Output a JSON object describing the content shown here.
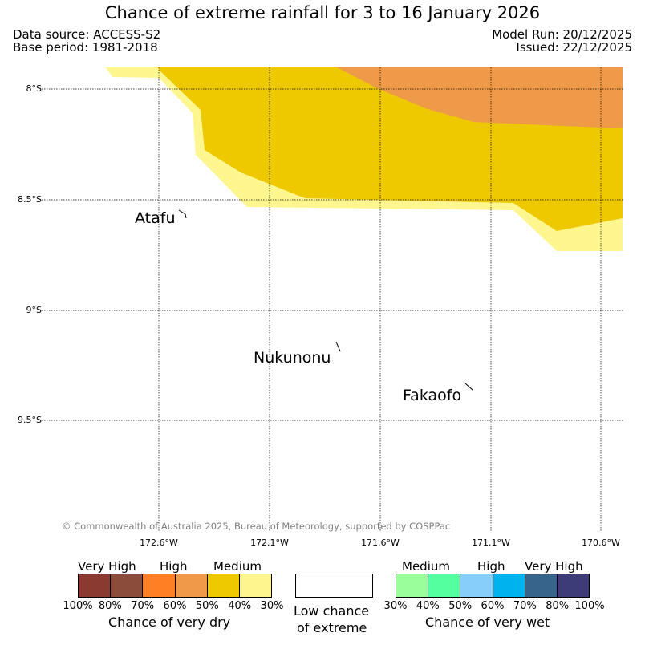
{
  "header": {
    "title": "Chance of extreme rainfall for 3 to 16 January 2026",
    "data_source": "Data source: ACCESS-S2",
    "base_period": "Base period: 1981-2018",
    "model_run": "Model Run: 20/12/2025",
    "issued": "Issued: 22/12/2025"
  },
  "map": {
    "lat_labels": [
      "8°S",
      "8.5°S",
      "9°S",
      "9.5°S"
    ],
    "lon_labels": [
      "172.6°W",
      "172.1°W",
      "171.6°W",
      "171.1°W",
      "170.6°W"
    ],
    "places": [
      "Atafu",
      "Nukunonu",
      "Fakaofo"
    ],
    "copyright": "© Commonwealth of Australia 2025, Bureau of Meteorology, supported by COSPPac",
    "colors": {
      "dry_30_40": "#fff68f",
      "dry_40_50": "#eec900",
      "dry_50_60": "#ee9a49",
      "grid": "#000000"
    }
  },
  "legend": {
    "dry": {
      "headers": [
        "Very High",
        "High",
        "Medium"
      ],
      "colors": [
        "#8b3a32",
        "#8b4c3c",
        "#ff7f24",
        "#ee9a49",
        "#eec900",
        "#fff68f"
      ],
      "ticks": [
        "100%",
        "80%",
        "70%",
        "60%",
        "50%",
        "40%",
        "30%"
      ],
      "caption": "Chance of very dry"
    },
    "low": {
      "caption_line1": "Low chance",
      "caption_line2": "of extreme"
    },
    "wet": {
      "headers": [
        "Medium",
        "High",
        "Very High"
      ],
      "colors": [
        "#9aff9a",
        "#54ff9f",
        "#87cefa",
        "#00b2ee",
        "#36648b",
        "#3d3b78"
      ],
      "ticks": [
        "30%",
        "40%",
        "50%",
        "60%",
        "70%",
        "80%",
        "100%"
      ],
      "caption": "Chance of very wet"
    }
  }
}
